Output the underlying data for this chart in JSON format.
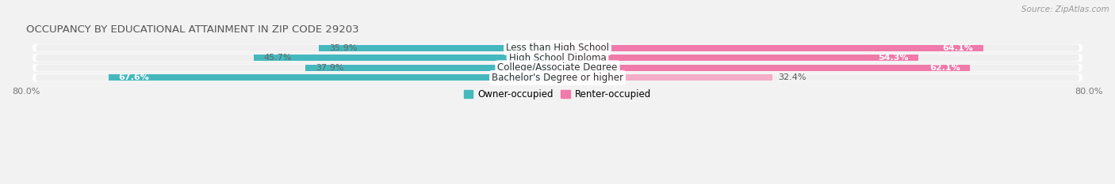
{
  "title": "OCCUPANCY BY EDUCATIONAL ATTAINMENT IN ZIP CODE 29203",
  "source": "Source: ZipAtlas.com",
  "categories": [
    "Less than High School",
    "High School Diploma",
    "College/Associate Degree",
    "Bachelor's Degree or higher"
  ],
  "owner_values": [
    35.9,
    45.7,
    37.9,
    67.6
  ],
  "renter_values": [
    64.1,
    54.3,
    62.1,
    32.4
  ],
  "owner_color": "#45b8be",
  "renter_colors": [
    "#f07aaa",
    "#f07aaa",
    "#f07aaa",
    "#f4aec8"
  ],
  "xlim_left": -80.0,
  "xlim_right": 80.0,
  "bar_height": 0.62,
  "fig_bg": "#f2f2f2",
  "row_bg": "#e0e0e0",
  "legend_labels": [
    "Owner-occupied",
    "Renter-occupied"
  ],
  "legend_colors": [
    "#45b8be",
    "#f07aaa"
  ],
  "owner_label_colors": [
    "#666666",
    "#666666",
    "#666666",
    "#ffffff"
  ],
  "renter_label_colors": [
    "#ffffff",
    "#ffffff",
    "#ffffff",
    "#666666"
  ]
}
